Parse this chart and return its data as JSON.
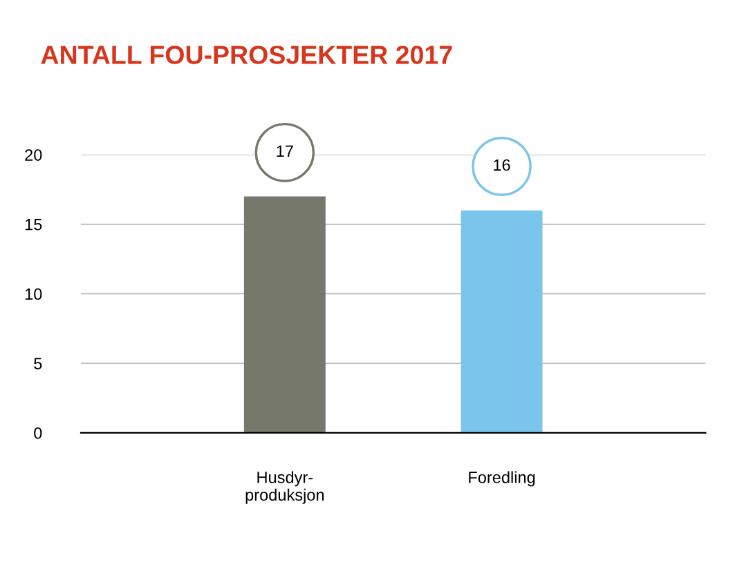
{
  "chart_data": {
    "type": "bar",
    "title": "ANTALL FOU-PROSJEKTER 2017",
    "categories": [
      "Husdyr-\nproduksjon",
      "Foredling"
    ],
    "values": [
      17,
      16
    ],
    "colors": [
      "#75786a",
      "#7bc4ec"
    ],
    "data_labels": true,
    "ylim": [
      0,
      20
    ],
    "yticks": [
      0,
      5,
      10,
      15,
      20
    ],
    "grid": "y"
  }
}
